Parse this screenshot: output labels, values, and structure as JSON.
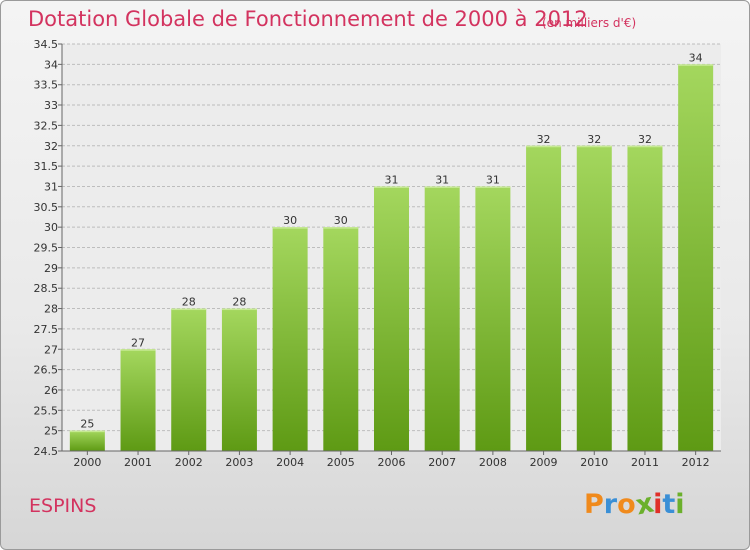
{
  "header": {
    "title": "Dotation Globale de Fonctionnement de 2000 à 2012",
    "subtitle": "(en milliers d'€)"
  },
  "footer": {
    "place": "ESPINS",
    "logo_text": "Proxiti",
    "logo_colors": [
      "#f08a1c",
      "#3a8fd6",
      "#f08a1c",
      "#6bb02c",
      "#e0302a",
      "#3a8fd6",
      "#6bb02c"
    ]
  },
  "colors": {
    "accent": "#d3335f",
    "bar_top": "#a4d75e",
    "bar_bottom": "#5e9a14",
    "grid": "#bdbdbd"
  },
  "chart_data": {
    "type": "bar",
    "title": "Dotation Globale de Fonctionnement de 2000 à 2012",
    "subtitle": "(en milliers d'€)",
    "xlabel": "",
    "ylabel": "",
    "categories": [
      "2000",
      "2001",
      "2002",
      "2003",
      "2004",
      "2005",
      "2006",
      "2007",
      "2008",
      "2009",
      "2010",
      "2011",
      "2012"
    ],
    "values": [
      25,
      27,
      28,
      28,
      30,
      30,
      31,
      31,
      31,
      32,
      32,
      32,
      34
    ],
    "data_labels": [
      "25",
      "27",
      "28",
      "28",
      "30",
      "30",
      "31",
      "31",
      "31",
      "32",
      "32",
      "32",
      "34"
    ],
    "ylim": [
      24.5,
      34.5
    ],
    "yticks": [
      "24.5",
      "25",
      "25.5",
      "26",
      "26.5",
      "27",
      "27.5",
      "28",
      "28.5",
      "29",
      "29.5",
      "30",
      "30.5",
      "31",
      "31.5",
      "32",
      "32.5",
      "33",
      "33.5",
      "34",
      "34.5"
    ],
    "grid": "horizontal",
    "legend": "none"
  }
}
